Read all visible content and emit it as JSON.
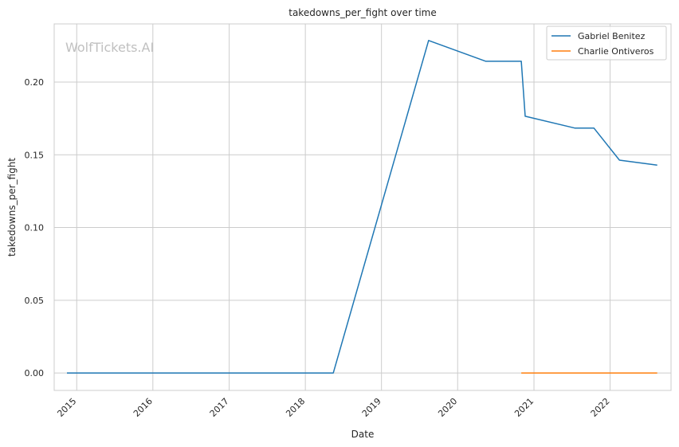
{
  "chart_data": {
    "type": "line",
    "title": "takedowns_per_fight over time",
    "xlabel": "Date",
    "ylabel": "takedowns_per_fight",
    "watermark": "WolfTickets.AI",
    "xlim": [
      "2014-09-15",
      "2022-10-20"
    ],
    "ylim": [
      -0.012,
      0.24
    ],
    "x_ticks": [
      "2015",
      "2016",
      "2017",
      "2018",
      "2019",
      "2020",
      "2021",
      "2022"
    ],
    "y_ticks": [
      "0.00",
      "0.05",
      "0.10",
      "0.15",
      "0.20"
    ],
    "grid": true,
    "legend_position": "top-right",
    "series": [
      {
        "name": "Gabriel Benitez",
        "color": "#1f77b4",
        "points": [
          {
            "x": "2014-11-15",
            "y": 0.0
          },
          {
            "x": "2018-05-15",
            "y": 0.0
          },
          {
            "x": "2019-08-15",
            "y": 0.2286
          },
          {
            "x": "2020-05-15",
            "y": 0.2143
          },
          {
            "x": "2020-11-01",
            "y": 0.2143
          },
          {
            "x": "2020-11-20",
            "y": 0.1765
          },
          {
            "x": "2021-07-15",
            "y": 0.1684
          },
          {
            "x": "2021-10-15",
            "y": 0.1684
          },
          {
            "x": "2022-02-15",
            "y": 0.1463
          },
          {
            "x": "2022-08-15",
            "y": 0.1429
          }
        ]
      },
      {
        "name": "Charlie Ontiveros",
        "color": "#ff7f0e",
        "points": [
          {
            "x": "2020-11-01",
            "y": 0.0
          },
          {
            "x": "2022-08-15",
            "y": 0.0
          }
        ]
      }
    ]
  }
}
